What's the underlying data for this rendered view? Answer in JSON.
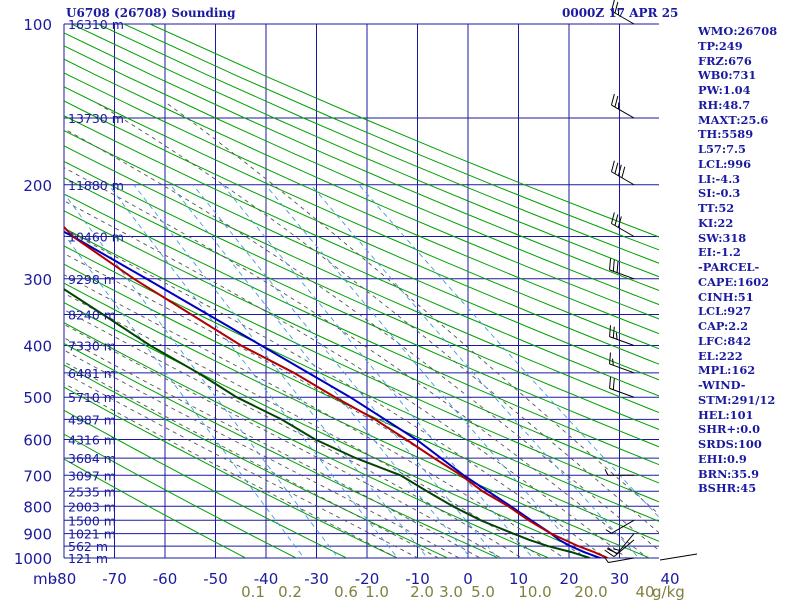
{
  "header": {
    "station_title": "U6708 (26708) Sounding",
    "time_title": "0000Z 17 APR 25"
  },
  "stats": [
    "WMO:26708",
    "TP:249",
    "FRZ:676",
    "WB0:731",
    "PW:1.04",
    "RH:48.7",
    "MAXT:25.6",
    "TH:5589",
    "L57:7.5",
    "LCL:996",
    "LI:-4.3",
    "SI:-0.3",
    "TT:52",
    "KI:22",
    "SW:318",
    "EI:-1.2",
    "-PARCEL-",
    "CAPE:1602",
    "CINH:51",
    "LCL:927",
    "CAP:2.2",
    "LFC:842",
    "EL:222",
    "MPL:162",
    "-WIND-",
    "STM:291/12",
    "HEL:101",
    "SHR+:0.0",
    "SRDS:100",
    "EHI:0.9",
    "BRN:35.9",
    "BSHR:45"
  ],
  "colors": {
    "grid": "#1a1aa0",
    "dry_adiabat": "#00a000",
    "moist_adiabat": "#555555",
    "mixing_ratio": "#4499dd",
    "temperature": "#b00000",
    "dewpoint": "#004400",
    "parcel": "#0000c0",
    "mixing_label": "#808040"
  },
  "chart_data": {
    "type": "skew-t",
    "y_unit_label": "mb",
    "x_ticks": [
      -80,
      -70,
      -60,
      -50,
      -40,
      -30,
      -20,
      -10,
      0,
      10,
      20,
      30,
      40
    ],
    "pressure_levels": [
      100,
      150,
      200,
      250,
      300,
      350,
      400,
      450,
      500,
      550,
      600,
      650,
      700,
      750,
      800,
      850,
      900,
      950,
      1000
    ],
    "pressure_labels": [
      100,
      200,
      300,
      400,
      500,
      600,
      700,
      800,
      900,
      1000
    ],
    "height_labels": [
      {
        "p": 100,
        "text": "16310 m"
      },
      {
        "p": 150,
        "text": "13730 m"
      },
      {
        "p": 200,
        "text": "11880 m"
      },
      {
        "p": 250,
        "text": "10460 m"
      },
      {
        "p": 300,
        "text": "9298 m"
      },
      {
        "p": 350,
        "text": "8240 m"
      },
      {
        "p": 400,
        "text": "7330 m"
      },
      {
        "p": 450,
        "text": "6481 m"
      },
      {
        "p": 500,
        "text": "5710 m"
      },
      {
        "p": 550,
        "text": "4987 m"
      },
      {
        "p": 600,
        "text": "4316 m"
      },
      {
        "p": 650,
        "text": "3684 m"
      },
      {
        "p": 700,
        "text": "3097 m"
      },
      {
        "p": 750,
        "text": "2535 m"
      },
      {
        "p": 800,
        "text": "2003 m"
      },
      {
        "p": 850,
        "text": "1500 m"
      },
      {
        "p": 900,
        "text": "1021 m"
      },
      {
        "p": 950,
        "text": "562 m"
      },
      {
        "p": 1000,
        "text": "121 m"
      }
    ],
    "mixing_ratio_labels": [
      "0.1",
      "0.2",
      "0.6",
      "1.0",
      "2.0",
      "3.0",
      "5.0",
      "10.0",
      "20.0",
      "40"
    ],
    "mixing_ratio_unit": "g/kg",
    "temperature": [
      [
        1004,
        18
      ],
      [
        1000,
        18.5
      ],
      [
        975,
        16.5
      ],
      [
        950,
        14
      ],
      [
        925,
        12
      ],
      [
        900,
        10
      ],
      [
        875,
        8.5
      ],
      [
        850,
        7
      ],
      [
        800,
        4.5
      ],
      [
        750,
        1
      ],
      [
        700,
        -1.5
      ],
      [
        650,
        -5
      ],
      [
        600,
        -8.5
      ],
      [
        550,
        -12.5
      ],
      [
        500,
        -18
      ],
      [
        450,
        -23.5
      ],
      [
        400,
        -31
      ],
      [
        350,
        -37.5
      ],
      [
        300,
        -45
      ],
      [
        250,
        -52.5
      ],
      [
        230,
        -54
      ],
      [
        210,
        -53.5
      ],
      [
        200,
        -55
      ],
      [
        180,
        -55
      ],
      [
        170,
        -54.5
      ],
      [
        160,
        -56
      ],
      [
        150,
        -58.5
      ],
      [
        140,
        -60
      ],
      [
        130,
        -61.5
      ],
      [
        120,
        -62
      ],
      [
        110,
        -64
      ],
      [
        100,
        -66
      ]
    ],
    "dewpoint": [
      [
        1004,
        13.5
      ],
      [
        1000,
        15
      ],
      [
        975,
        12
      ],
      [
        950,
        8
      ],
      [
        925,
        5
      ],
      [
        900,
        2.5
      ],
      [
        875,
        0
      ],
      [
        850,
        -2.5
      ],
      [
        800,
        -6.5
      ],
      [
        750,
        -10
      ],
      [
        700,
        -13.5
      ],
      [
        650,
        -20.5
      ],
      [
        600,
        -26.5
      ],
      [
        550,
        -31
      ],
      [
        500,
        -37.5
      ],
      [
        450,
        -42.5
      ],
      [
        400,
        -49
      ],
      [
        350,
        -55
      ],
      [
        300,
        -62
      ],
      [
        250,
        -69
      ],
      [
        230,
        -72
      ],
      [
        200,
        -72.5
      ],
      [
        180,
        -73
      ],
      [
        170,
        -70
      ],
      [
        160,
        -74
      ],
      [
        150,
        -77
      ],
      [
        140,
        -80
      ],
      [
        125,
        -81
      ],
      [
        115,
        -80.5
      ],
      [
        105,
        -81.5
      ],
      [
        100,
        -82
      ]
    ],
    "parcel": [
      [
        1004,
        18
      ],
      [
        1000,
        17
      ],
      [
        975,
        14.5
      ],
      [
        950,
        12.5
      ],
      [
        927,
        11
      ],
      [
        900,
        10
      ],
      [
        850,
        7.5
      ],
      [
        800,
        5
      ],
      [
        700,
        -1
      ],
      [
        600,
        -6.5
      ],
      [
        500,
        -15
      ],
      [
        400,
        -27
      ],
      [
        300,
        -42.5
      ],
      [
        250,
        -52.5
      ],
      [
        222,
        -60
      ],
      [
        200,
        -65
      ],
      [
        180,
        -71.5
      ],
      [
        160,
        -78
      ],
      [
        150,
        -80.5
      ],
      [
        140,
        -83.5
      ]
    ],
    "wind_barbs": [
      {
        "p": 100,
        "dir": 300,
        "spd": 25
      },
      {
        "p": 150,
        "dir": 300,
        "spd": 25
      },
      {
        "p": 200,
        "dir": 300,
        "spd": 40
      },
      {
        "p": 250,
        "dir": 300,
        "spd": 30
      },
      {
        "p": 300,
        "dir": 290,
        "spd": 30
      },
      {
        "p": 400,
        "dir": 290,
        "spd": 25
      },
      {
        "p": 450,
        "dir": 290,
        "spd": 15
      },
      {
        "p": 500,
        "dir": 290,
        "spd": 20
      },
      {
        "p": 700,
        "dir": 270,
        "spd": 5
      },
      {
        "p": 850,
        "dir": 240,
        "spd": 5
      },
      {
        "p": 900,
        "dir": 220,
        "spd": 15
      },
      {
        "p": 925,
        "dir": 230,
        "spd": 20
      },
      {
        "p": 1000,
        "dir": 260,
        "spd": 5
      }
    ]
  }
}
